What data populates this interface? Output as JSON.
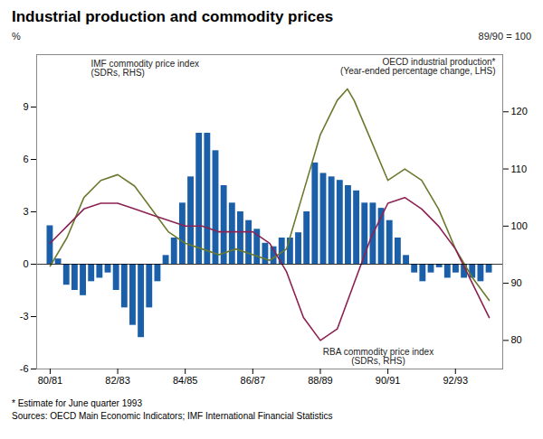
{
  "chart_data": {
    "type": "bar",
    "title": "Industrial production and commodity prices",
    "ylabel": "%",
    "y2label": "89/90 = 100",
    "annotations": [
      "IMF commodity price index\n(SDRs, RHS)",
      "OECD industrial production*\n(Year-ended percentage change, LHS)",
      "RBA commodity price index\n(SDRs, RHS)"
    ],
    "footnotes": [
      "* Estimate for June quarter 1993",
      "Sources: OECD Main Economic Indicators;  IMF International Financial Statistics"
    ],
    "xlim": [
      -0.4,
      13.4
    ],
    "xticks": [
      {
        "value": 0,
        "label": "80/81"
      },
      {
        "value": 2,
        "label": "82/83"
      },
      {
        "value": 4,
        "label": "84/85"
      },
      {
        "value": 6,
        "label": "86/87"
      },
      {
        "value": 8,
        "label": "88/89"
      },
      {
        "value": 10,
        "label": "90/91"
      },
      {
        "value": 12,
        "label": "92/93"
      }
    ],
    "ylim": [
      -6,
      12
    ],
    "yticks": [
      -6,
      -3,
      0,
      3,
      6,
      9
    ],
    "y2lim": [
      75,
      130
    ],
    "y2ticks": [
      80,
      90,
      100,
      110,
      120
    ],
    "grid": false,
    "series": [
      {
        "type": "bar",
        "color": "#1a5fa8",
        "x": [
          0,
          0.2453,
          0.4906,
          0.7358,
          0.9811,
          1.2264,
          1.4717,
          1.717,
          1.9623,
          2.2075,
          2.4528,
          2.6981,
          2.9434,
          3.1887,
          3.434,
          3.6792,
          3.9245,
          4.1698,
          4.4151,
          4.6604,
          4.9057,
          5.1509,
          5.3962,
          5.6415,
          5.8868,
          6.1321,
          6.3774,
          6.6226,
          6.8679,
          7.1132,
          7.3585,
          7.6038,
          7.8491,
          8.0943,
          8.3396,
          8.5849,
          8.8302,
          9.0755,
          9.3208,
          9.566,
          9.8113,
          10.0566,
          10.3019,
          10.5472,
          10.7925,
          11.0377,
          11.283,
          11.5283,
          11.7736,
          12.0189,
          12.2642,
          12.5094,
          12.7547,
          13
        ],
        "values": [
          2.2,
          0.3,
          -1.2,
          -1.5,
          -1.8,
          -1.0,
          -0.8,
          -0.5,
          -1.5,
          -2.5,
          -3.5,
          -4.2,
          -2.5,
          -1.0,
          0.5,
          1.5,
          3.5,
          5.0,
          7.5,
          7.5,
          6.5,
          4.5,
          3.5,
          3.0,
          2.5,
          2.0,
          1.2,
          1.0,
          1.5,
          1.5,
          1.8,
          3.0,
          5.8,
          5.2,
          5.0,
          4.8,
          4.5,
          4.2,
          3.5,
          3.5,
          3.2,
          2.5,
          1.5,
          0.5,
          -0.5,
          -1.0,
          -0.5,
          -0.2,
          -0.8,
          -0.5,
          -0.8,
          -0.8,
          -1.0,
          -0.5
        ]
      },
      {
        "type": "line",
        "axis": "y2",
        "color": "#6b7a2e",
        "x": [
          0.0,
          0.5,
          1.0,
          1.5,
          2.0,
          2.5,
          3.0,
          3.5,
          4.0,
          4.5,
          5.0,
          5.5,
          6.0,
          6.5,
          7.0,
          7.5,
          8.0,
          8.5,
          8.8,
          9.0,
          9.5,
          10.0,
          10.5,
          11.0,
          11.5,
          12.0,
          12.5,
          13.0
        ],
        "values": [
          93,
          98,
          105,
          108,
          109,
          107,
          103,
          99,
          97,
          96,
          95,
          96,
          95,
          94,
          96,
          106,
          116,
          122,
          124,
          122,
          115,
          108,
          110,
          108,
          103,
          96,
          91,
          87
        ]
      },
      {
        "type": "line",
        "axis": "y2",
        "color": "#8b2252",
        "x": [
          0.0,
          0.5,
          1.0,
          1.5,
          2.0,
          2.5,
          3.0,
          3.5,
          4.0,
          4.5,
          5.0,
          5.5,
          6.0,
          6.5,
          7.0,
          7.5,
          8.0,
          8.5,
          9.0,
          9.5,
          10.0,
          10.5,
          11.0,
          11.5,
          12.0,
          12.5,
          13.0
        ],
        "values": [
          97,
          100,
          103,
          104,
          104,
          103,
          102,
          101,
          100,
          100,
          99,
          99,
          99,
          97,
          92,
          84,
          80,
          82,
          90,
          98,
          104,
          105,
          103,
          100,
          96,
          90,
          84
        ]
      }
    ]
  }
}
